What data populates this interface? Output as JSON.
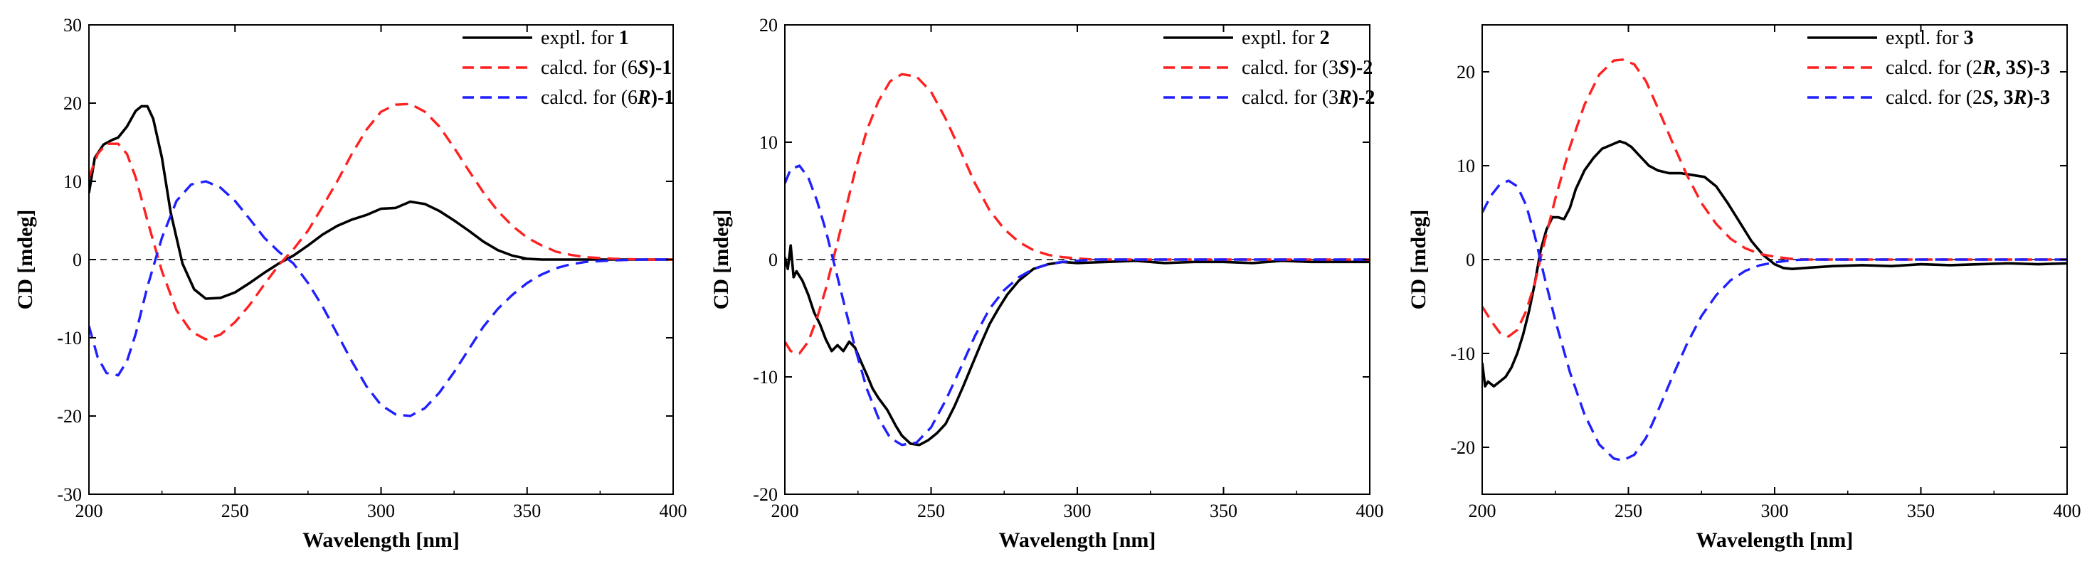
{
  "figure_title": "CD spectra",
  "colors": {
    "exptl": "#000000",
    "calcd_red": "#ff2020",
    "calcd_blue": "#2020ff"
  },
  "chart_data": [
    {
      "type": "line",
      "id": "compound-1",
      "xlabel": "Wavelength [nm]",
      "ylabel": "CD [mdeg]",
      "xlim": [
        200,
        400
      ],
      "ylim": [
        -30,
        30
      ],
      "xticks": [
        200,
        250,
        300,
        350,
        400
      ],
      "yticks": [
        -30,
        -20,
        -10,
        0,
        10,
        20,
        30
      ],
      "zero_line": "dashed",
      "legend_position": "top-right",
      "series": [
        {
          "name": "exptl. for 1",
          "legend": [
            {
              "t": "exptl. for "
            },
            {
              "t": "1",
              "s": "b"
            }
          ],
          "style": "solid",
          "color": "#000000",
          "x": [
            200,
            202,
            205,
            208,
            210,
            213,
            216,
            218,
            220,
            222,
            225,
            228,
            232,
            236,
            240,
            245,
            250,
            255,
            260,
            265,
            270,
            275,
            280,
            285,
            290,
            295,
            300,
            305,
            310,
            315,
            320,
            325,
            330,
            335,
            340,
            345,
            350,
            355,
            360,
            370,
            380,
            390,
            400
          ],
          "y": [
            8.5,
            13,
            14.7,
            15.3,
            15.6,
            17,
            19,
            19.6,
            19.6,
            18,
            13,
            6,
            -0.5,
            -3.8,
            -5,
            -4.9,
            -4.2,
            -3,
            -1.7,
            -0.5,
            0.5,
            1.8,
            3.2,
            4.3,
            5.1,
            5.7,
            6.5,
            6.6,
            7.4,
            7.1,
            6.2,
            5,
            3.7,
            2.3,
            1.2,
            0.5,
            0.1,
            0,
            0,
            0,
            0,
            0,
            0
          ]
        },
        {
          "name": "calcd. for (6S)-1",
          "legend": [
            {
              "t": "calcd. for "
            },
            {
              "t": "(6"
            },
            {
              "t": "S",
              "s": "bi"
            },
            {
              "t": ")-1",
              "s": "b"
            }
          ],
          "style": "dashed",
          "color": "#ff2020",
          "x": [
            200,
            203,
            206,
            210,
            213,
            216,
            220,
            225,
            230,
            235,
            240,
            245,
            250,
            255,
            260,
            265,
            270,
            275,
            280,
            285,
            290,
            295,
            300,
            305,
            310,
            315,
            320,
            325,
            330,
            335,
            340,
            345,
            350,
            355,
            360,
            365,
            370,
            380,
            390,
            400
          ],
          "y": [
            10.5,
            13.5,
            14.8,
            14.8,
            13.5,
            10.5,
            5,
            -1.5,
            -6.5,
            -9.2,
            -10.2,
            -9.6,
            -8,
            -5.8,
            -3.2,
            -0.7,
            1.3,
            3.7,
            6.8,
            10,
            13.5,
            16.6,
            18.9,
            19.8,
            19.9,
            18.9,
            17,
            14.3,
            11.4,
            8.6,
            6.2,
            4.3,
            2.8,
            1.8,
            1,
            0.6,
            0.3,
            0.1,
            0,
            0
          ]
        },
        {
          "name": "calcd. for (6R)-1",
          "legend": [
            {
              "t": "calcd. for "
            },
            {
              "t": "(6"
            },
            {
              "t": "R",
              "s": "bi"
            },
            {
              "t": ")-1",
              "s": "b"
            }
          ],
          "style": "dashed",
          "color": "#2020ff",
          "x": [
            200,
            203,
            206,
            210,
            213,
            216,
            220,
            225,
            230,
            235,
            240,
            245,
            250,
            255,
            260,
            265,
            270,
            275,
            280,
            285,
            290,
            295,
            300,
            305,
            310,
            315,
            320,
            325,
            330,
            335,
            340,
            345,
            350,
            355,
            360,
            365,
            370,
            380,
            390,
            400
          ],
          "y": [
            -8.5,
            -12.5,
            -14.5,
            -14.8,
            -13,
            -9.5,
            -3.5,
            2.8,
            7.5,
            9.6,
            10,
            9.2,
            7.5,
            5.2,
            2.8,
            1,
            -0.5,
            -3,
            -6,
            -9.5,
            -13,
            -16.2,
            -18.6,
            -19.8,
            -20,
            -19,
            -17,
            -14.4,
            -11.5,
            -8.6,
            -6.3,
            -4.5,
            -3,
            -1.9,
            -1.1,
            -0.6,
            -0.3,
            -0.1,
            0,
            0
          ]
        }
      ]
    },
    {
      "type": "line",
      "id": "compound-2",
      "xlabel": "Wavelength [nm]",
      "ylabel": "CD [mdeg]",
      "xlim": [
        200,
        400
      ],
      "ylim": [
        -20,
        20
      ],
      "xticks": [
        200,
        250,
        300,
        350,
        400
      ],
      "yticks": [
        -20,
        -10,
        0,
        10,
        20
      ],
      "zero_line": "dashed",
      "legend_position": "top-right",
      "series": [
        {
          "name": "exptl. for 2",
          "legend": [
            {
              "t": "exptl. for "
            },
            {
              "t": "2",
              "s": "b"
            }
          ],
          "style": "solid",
          "color": "#000000",
          "x": [
            200,
            201,
            202,
            203,
            204,
            206,
            208,
            210,
            212,
            214,
            216,
            218,
            220,
            222,
            224,
            226,
            228,
            230,
            232,
            235,
            238,
            240,
            243,
            246,
            249,
            252,
            255,
            258,
            261,
            264,
            267,
            270,
            273,
            276,
            280,
            285,
            290,
            295,
            300,
            310,
            320,
            330,
            340,
            350,
            360,
            370,
            380,
            390,
            400
          ],
          "y": [
            0.2,
            -0.8,
            1.2,
            -1.5,
            -1,
            -1.8,
            -3,
            -4.5,
            -5.5,
            -6.8,
            -7.8,
            -7.3,
            -7.8,
            -7,
            -7.5,
            -8.7,
            -9.8,
            -11,
            -11.8,
            -12.8,
            -14.2,
            -15,
            -15.7,
            -15.8,
            -15.4,
            -14.8,
            -14,
            -12.5,
            -10.8,
            -9,
            -7.2,
            -5.5,
            -4.2,
            -3,
            -1.8,
            -0.8,
            -0.4,
            -0.2,
            -0.3,
            -0.2,
            -0.1,
            -0.3,
            -0.2,
            -0.2,
            -0.3,
            -0.1,
            -0.2,
            -0.2,
            -0.2
          ]
        },
        {
          "name": "calcd. for (3S)-2",
          "legend": [
            {
              "t": "calcd. for "
            },
            {
              "t": "(3"
            },
            {
              "t": "S",
              "s": "bi"
            },
            {
              "t": ")-2",
              "s": "b"
            }
          ],
          "style": "dashed",
          "color": "#ff2020",
          "x": [
            200,
            202,
            205,
            208,
            211,
            214,
            217,
            220,
            224,
            228,
            232,
            236,
            240,
            245,
            250,
            255,
            260,
            265,
            270,
            275,
            280,
            285,
            290,
            295,
            300,
            305,
            310,
            320,
            330,
            340,
            350,
            360,
            370,
            380,
            390,
            400
          ],
          "y": [
            -7,
            -7.8,
            -8,
            -7,
            -5,
            -2.5,
            0.5,
            3.5,
            7.5,
            11,
            13.5,
            15.2,
            15.8,
            15.6,
            14.3,
            12,
            9.3,
            6.5,
            4.2,
            2.6,
            1.5,
            0.8,
            0.4,
            0.2,
            0.1,
            0,
            0,
            0,
            0,
            0,
            0,
            0,
            0,
            0,
            0,
            0
          ]
        },
        {
          "name": "calcd. for (3R)-2",
          "legend": [
            {
              "t": "calcd. for "
            },
            {
              "t": "(3"
            },
            {
              "t": "R",
              "s": "bi"
            },
            {
              "t": ")-2",
              "s": "b"
            }
          ],
          "style": "dashed",
          "color": "#2020ff",
          "x": [
            200,
            202,
            205,
            208,
            211,
            214,
            217,
            220,
            224,
            228,
            232,
            236,
            240,
            245,
            250,
            255,
            260,
            265,
            270,
            275,
            280,
            285,
            290,
            295,
            300,
            305,
            310,
            320,
            330,
            340,
            350,
            360,
            370,
            380,
            390,
            400
          ],
          "y": [
            6.5,
            7.7,
            8,
            7,
            5,
            2.5,
            -0.5,
            -3.5,
            -7.5,
            -11,
            -13.5,
            -15.2,
            -15.8,
            -15.6,
            -14.3,
            -12,
            -9.3,
            -6.5,
            -4.2,
            -2.6,
            -1.5,
            -0.8,
            -0.4,
            -0.2,
            -0.1,
            0,
            0,
            0,
            0,
            0,
            0,
            0,
            0,
            0,
            0,
            0
          ]
        }
      ]
    },
    {
      "type": "line",
      "id": "compound-3",
      "xlabel": "Wavelength [nm]",
      "ylabel": "CD [mdeg]",
      "xlim": [
        200,
        400
      ],
      "ylim": [
        -25,
        25
      ],
      "xticks": [
        200,
        250,
        300,
        350,
        400
      ],
      "yticks": [
        -20,
        -10,
        0,
        10,
        20
      ],
      "zero_line": "dashed",
      "legend_position": "top-right",
      "series": [
        {
          "name": "exptl. for 3",
          "legend": [
            {
              "t": "exptl. for "
            },
            {
              "t": "3",
              "s": "b"
            }
          ],
          "style": "solid",
          "color": "#000000",
          "x": [
            200,
            201,
            202,
            204,
            206,
            208,
            210,
            212,
            214,
            216,
            218,
            220,
            222,
            224,
            226,
            228,
            230,
            232,
            235,
            238,
            241,
            244,
            247,
            249,
            251,
            254,
            257,
            260,
            264,
            268,
            272,
            276,
            280,
            284,
            288,
            292,
            296,
            300,
            303,
            306,
            310,
            320,
            330,
            340,
            350,
            360,
            370,
            380,
            390,
            400
          ],
          "y": [
            -11,
            -13.5,
            -13,
            -13.5,
            -13,
            -12.5,
            -11.5,
            -10,
            -8,
            -5.5,
            -2.5,
            1,
            3.2,
            4.5,
            4.5,
            4.3,
            5.5,
            7.5,
            9.5,
            10.8,
            11.8,
            12.2,
            12.6,
            12.4,
            12,
            11,
            10,
            9.5,
            9.2,
            9.2,
            9,
            8.8,
            7.8,
            6,
            4,
            2,
            0.5,
            -0.5,
            -0.9,
            -1,
            -0.9,
            -0.7,
            -0.6,
            -0.7,
            -0.5,
            -0.6,
            -0.5,
            -0.4,
            -0.5,
            -0.4
          ]
        },
        {
          "name": "calcd. for (2R, 3S)-3",
          "legend": [
            {
              "t": "calcd. for "
            },
            {
              "t": "(2"
            },
            {
              "t": "R",
              "s": "bi"
            },
            {
              "t": ", 3",
              "s": "b"
            },
            {
              "t": "S",
              "s": "bi"
            },
            {
              "t": ")-3",
              "s": "b"
            }
          ],
          "style": "dashed",
          "color": "#ff2020",
          "x": [
            200,
            203,
            206,
            209,
            212,
            215,
            218,
            221,
            225,
            230,
            235,
            240,
            245,
            248,
            252,
            256,
            260,
            265,
            270,
            275,
            280,
            285,
            290,
            295,
            300,
            305,
            310,
            320,
            330,
            340,
            350,
            360,
            370,
            380,
            390,
            400
          ],
          "y": [
            -5,
            -6.5,
            -7.8,
            -8.2,
            -7.5,
            -5.5,
            -2.5,
            1.5,
            6.5,
            12,
            16.5,
            19.7,
            21.2,
            21.3,
            20.8,
            19,
            16.2,
            12.5,
            9,
            6,
            3.8,
            2.2,
            1.2,
            0.6,
            0.3,
            0.1,
            0,
            0,
            0,
            0,
            0,
            0,
            0,
            0,
            0,
            0
          ]
        },
        {
          "name": "calcd. for (2S, 3R)-3",
          "legend": [
            {
              "t": "calcd. for "
            },
            {
              "t": "(2"
            },
            {
              "t": "S",
              "s": "bi"
            },
            {
              "t": ", 3",
              "s": "b"
            },
            {
              "t": "R",
              "s": "bi"
            },
            {
              "t": ")-3",
              "s": "b"
            }
          ],
          "style": "dashed",
          "color": "#2020ff",
          "x": [
            200,
            203,
            206,
            209,
            212,
            215,
            218,
            221,
            225,
            230,
            235,
            240,
            245,
            248,
            252,
            256,
            260,
            265,
            270,
            275,
            280,
            285,
            290,
            295,
            300,
            305,
            310,
            320,
            330,
            340,
            350,
            360,
            370,
            380,
            390,
            400
          ],
          "y": [
            5,
            6.8,
            8,
            8.4,
            7.8,
            5.8,
            2.5,
            -1.5,
            -6.5,
            -12,
            -16.5,
            -19.7,
            -21.2,
            -21.4,
            -20.8,
            -19,
            -16.2,
            -12.5,
            -9,
            -6,
            -3.8,
            -2.2,
            -1.2,
            -0.6,
            -0.3,
            -0.1,
            0,
            0,
            0,
            0,
            0,
            0,
            0,
            0,
            0,
            0
          ]
        }
      ]
    }
  ]
}
